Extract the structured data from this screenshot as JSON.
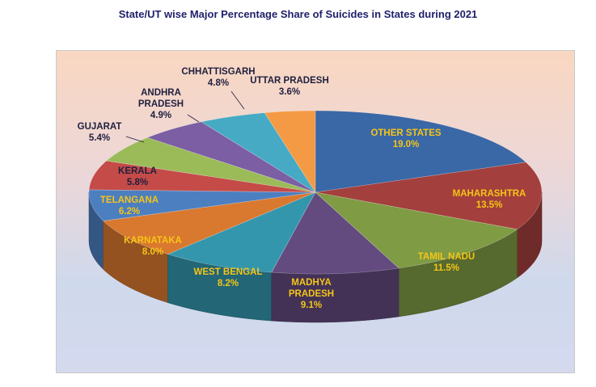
{
  "chart_data": {
    "type": "pie",
    "title": "State/UT wise Major Percentage Share of Suicides in States during 2021",
    "slices": [
      {
        "name": "OTHER STATES",
        "label_lines": [
          "OTHER STATES"
        ],
        "value": 19.0,
        "value_label": "19.0%",
        "color": "#3a67a6",
        "label_color": "#f5c518"
      },
      {
        "name": "MAHARASHTRA",
        "label_lines": [
          "MAHARASHTRA"
        ],
        "value": 13.5,
        "value_label": "13.5%",
        "color": "#a33f3c",
        "label_color": "#f5c518"
      },
      {
        "name": "TAMIL NADU",
        "label_lines": [
          "TAMIL NADU"
        ],
        "value": 11.5,
        "value_label": "11.5%",
        "color": "#7f9b44",
        "label_color": "#f5c518"
      },
      {
        "name": "MADHYA PRADESH",
        "label_lines": [
          "MADHYA",
          "PRADESH"
        ],
        "value": 9.1,
        "value_label": "9.1%",
        "color": "#634a7f",
        "label_color": "#f5c518"
      },
      {
        "name": "WEST BENGAL",
        "label_lines": [
          "WEST BENGAL"
        ],
        "value": 8.2,
        "value_label": "8.2%",
        "color": "#3496ac",
        "label_color": "#f5c518"
      },
      {
        "name": "KARNATAKA",
        "label_lines": [
          "KARNATAKA"
        ],
        "value": 8.0,
        "value_label": "8.0%",
        "color": "#d9782f",
        "label_color": "#f5c518"
      },
      {
        "name": "TELANGANA",
        "label_lines": [
          "TELANGANA"
        ],
        "value": 6.2,
        "value_label": "6.2%",
        "color": "#4c7fc0",
        "label_color": "#f5c518"
      },
      {
        "name": "KERALA",
        "label_lines": [
          "KERALA"
        ],
        "value": 5.8,
        "value_label": "5.8%",
        "color": "#c44b48",
        "label_color": "#1f1f3f"
      },
      {
        "name": "GUJARAT",
        "label_lines": [
          "GUJARAT"
        ],
        "value": 5.4,
        "value_label": "5.4%",
        "color": "#9bbb59",
        "label_color": "#1f1f3f"
      },
      {
        "name": "ANDHRA PRADESH",
        "label_lines": [
          "ANDHRA",
          "PRADESH"
        ],
        "value": 4.9,
        "value_label": "4.9%",
        "color": "#7b5ea3",
        "label_color": "#1f1f3f"
      },
      {
        "name": "CHHATTISGARH",
        "label_lines": [
          "CHHATTISGARH"
        ],
        "value": 4.8,
        "value_label": "4.8%",
        "color": "#46aac4",
        "label_color": "#1f1f3f"
      },
      {
        "name": "UTTAR PRADESH",
        "label_lines": [
          "UTTAR PRADESH"
        ],
        "value": 3.6,
        "value_label": "3.6%",
        "color": "#f59a44",
        "label_color": "#1f1f3f"
      }
    ],
    "legend": "none"
  }
}
